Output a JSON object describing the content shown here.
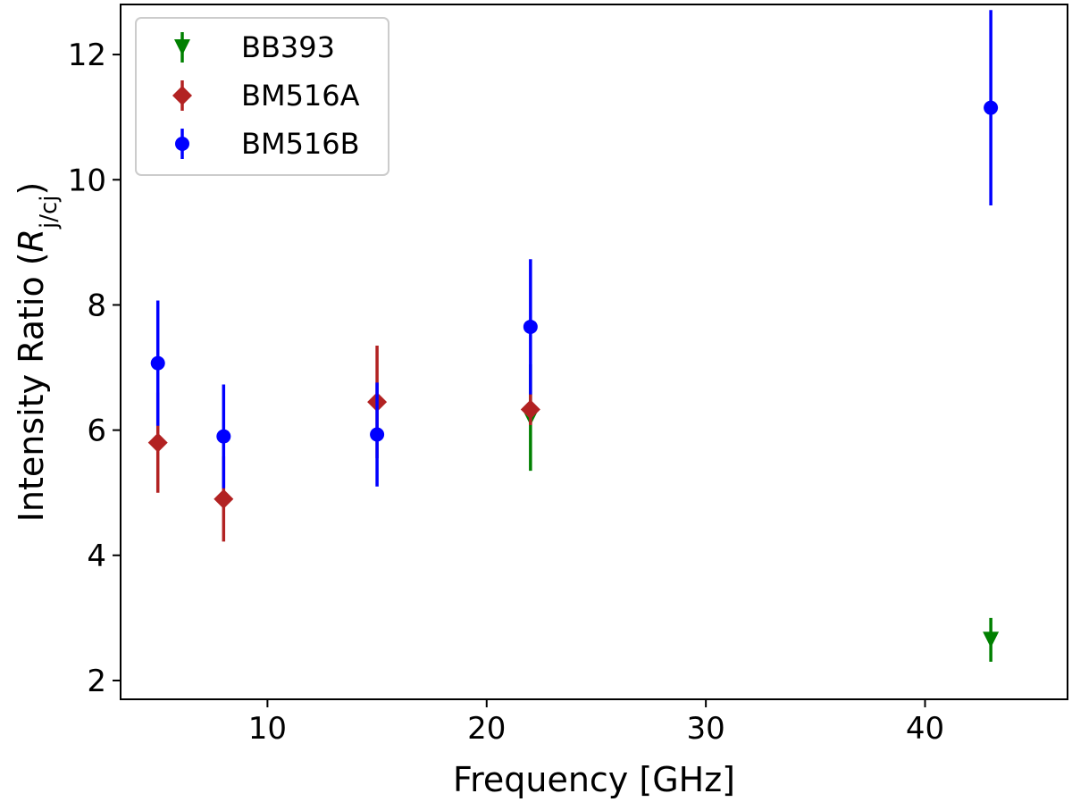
{
  "chart_data": {
    "type": "scatter",
    "title": "",
    "xlabel": "Frequency [GHz]",
    "ylabel": {
      "prefix": "Intensity Ratio (",
      "symbol": "R",
      "subscript": "j/cj",
      "suffix": ")"
    },
    "xlim": [
      3.3,
      46.5
    ],
    "ylim": [
      1.7,
      12.8
    ],
    "xticks": [
      10,
      20,
      30,
      40
    ],
    "yticks": [
      2,
      4,
      6,
      8,
      10,
      12
    ],
    "grid": false,
    "legend_position": "top-left",
    "series": [
      {
        "name": "BB393",
        "color": "#008000",
        "marker": "triangle-down",
        "points": [
          {
            "x": 22,
            "y": 6.2,
            "err": 0.85
          },
          {
            "x": 43,
            "y": 2.65,
            "err": 0.35
          }
        ]
      },
      {
        "name": "BM516A",
        "color": "#b22222",
        "marker": "diamond",
        "points": [
          {
            "x": 5,
            "y": 5.8,
            "err": 0.8
          },
          {
            "x": 8,
            "y": 4.9,
            "err": 0.68
          },
          {
            "x": 15,
            "y": 6.45,
            "err": 0.9
          },
          {
            "x": 22,
            "y": 6.33,
            "err": 0.25
          }
        ]
      },
      {
        "name": "BM516B",
        "color": "#0000ff",
        "marker": "circle",
        "points": [
          {
            "x": 5,
            "y": 7.07,
            "err": 1.0
          },
          {
            "x": 8,
            "y": 5.9,
            "err": 0.83
          },
          {
            "x": 15,
            "y": 5.93,
            "err": 0.83
          },
          {
            "x": 22,
            "y": 7.65,
            "err": 1.08
          },
          {
            "x": 43,
            "y": 11.15,
            "err": 1.56
          }
        ]
      }
    ]
  }
}
